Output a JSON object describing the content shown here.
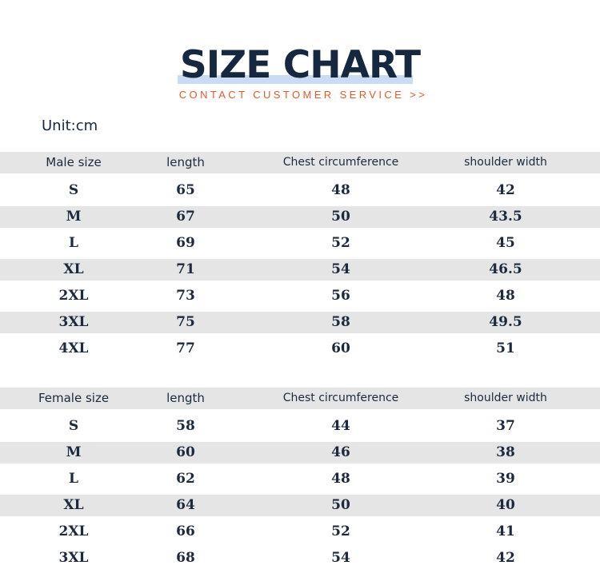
{
  "header": {
    "title": "SIZE CHART",
    "subtitle": "CONTACT CUSTOMER SERVICE >>",
    "unit": "Unit:cm"
  },
  "male_table": {
    "columns": [
      "Male size",
      "length",
      "Chest circumference",
      "shoulder width"
    ],
    "rows": [
      [
        "S",
        "65",
        "48",
        "42"
      ],
      [
        "M",
        "67",
        "50",
        "43.5"
      ],
      [
        "L",
        "69",
        "52",
        "45"
      ],
      [
        "XL",
        "71",
        "54",
        "46.5"
      ],
      [
        "2XL",
        "73",
        "56",
        "48"
      ],
      [
        "3XL",
        "75",
        "58",
        "49.5"
      ],
      [
        "4XL",
        "77",
        "60",
        "51"
      ]
    ]
  },
  "female_table": {
    "columns": [
      "Female size",
      "length",
      "Chest circumference",
      "shoulder width"
    ],
    "rows": [
      [
        "S",
        "58",
        "44",
        "37"
      ],
      [
        "M",
        "60",
        "46",
        "38"
      ],
      [
        "L",
        "62",
        "48",
        "39"
      ],
      [
        "XL",
        "64",
        "50",
        "40"
      ],
      [
        "2XL",
        "66",
        "52",
        "41"
      ],
      [
        "3XL",
        "68",
        "54",
        "42"
      ]
    ]
  },
  "colors": {
    "title": "#15283f",
    "title_highlight": "#c9dcf3",
    "subtitle": "#e05a2c",
    "row_shade": "#e5e5e5"
  }
}
